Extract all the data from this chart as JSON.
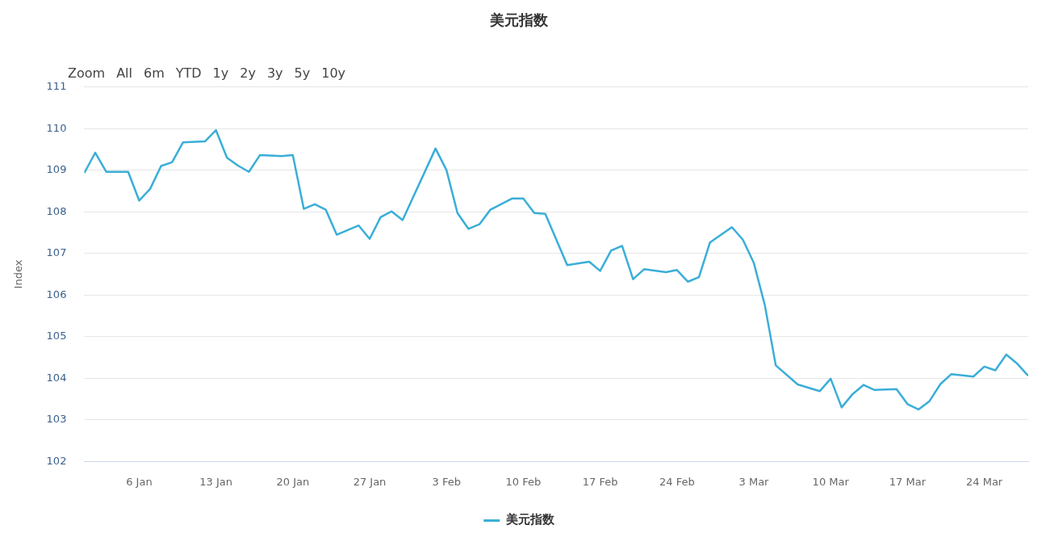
{
  "chart_data": {
    "type": "line",
    "title": "美元指数",
    "ylabel": "Index",
    "annotations": [
      "Zoom",
      "All",
      "6m",
      "YTD",
      "1y",
      "2y",
      "3y",
      "5y",
      "10y"
    ],
    "x": [
      "--01-01",
      "--01-02",
      "--01-03",
      "--01-05",
      "--01-06",
      "--01-07",
      "--01-08",
      "--01-09",
      "--01-10",
      "--01-12",
      "--01-13",
      "--01-14",
      "--01-15",
      "--01-16",
      "--01-17",
      "--01-19",
      "--01-20",
      "--01-21",
      "--01-22",
      "--01-23",
      "--01-24",
      "--01-26",
      "--01-27",
      "--01-28",
      "--01-29",
      "--01-30",
      "--02-02",
      "--02-03",
      "--02-04",
      "--02-05",
      "--02-06",
      "--02-07",
      "--02-09",
      "--02-10",
      "--02-11",
      "--02-12",
      "--02-14",
      "--02-16",
      "--02-17",
      "--02-18",
      "--02-19",
      "--02-20",
      "--02-21",
      "--02-23",
      "--02-24",
      "--02-25",
      "--02-26",
      "--02-27",
      "--03-01",
      "--03-02",
      "--03-03",
      "--03-04",
      "--03-05",
      "--03-07",
      "--03-09",
      "--03-10",
      "--03-11",
      "--03-12",
      "--03-13",
      "--03-14",
      "--03-16",
      "--03-17",
      "--03-18",
      "--03-19",
      "--03-20",
      "--03-21",
      "--03-23",
      "--03-24",
      "--03-25",
      "--03-26",
      "--03-27",
      "--03-28"
    ],
    "series": [
      {
        "name": "美元指数",
        "color": "#3aaed8",
        "values": [
          108.93,
          109.42,
          108.96,
          108.96,
          108.27,
          108.55,
          109.1,
          109.19,
          109.67,
          109.69,
          109.96,
          109.3,
          109.11,
          108.96,
          109.36,
          109.34,
          109.36,
          108.07,
          108.18,
          108.05,
          107.45,
          107.67,
          107.35,
          107.87,
          108.01,
          107.8,
          109.52,
          109.0,
          107.97,
          107.59,
          107.7,
          108.05,
          108.32,
          108.32,
          107.97,
          107.95,
          106.72,
          106.8,
          106.58,
          107.07,
          107.18,
          106.38,
          106.62,
          106.55,
          106.6,
          106.32,
          106.43,
          107.26,
          107.63,
          107.33,
          106.77,
          105.76,
          104.31,
          103.85,
          103.69,
          103.99,
          103.3,
          103.62,
          103.84,
          103.72,
          103.74,
          103.38,
          103.25,
          103.45,
          103.86,
          104.1,
          104.04,
          104.28,
          104.19,
          104.57,
          104.35,
          104.06
        ]
      }
    ],
    "xlim": [
      "--01-01",
      "--03-28"
    ],
    "xticks": [
      {
        "value": "--01-06",
        "label": "6 Jan"
      },
      {
        "value": "--01-13",
        "label": "13 Jan"
      },
      {
        "value": "--01-20",
        "label": "20 Jan"
      },
      {
        "value": "--01-27",
        "label": "27 Jan"
      },
      {
        "value": "--02-03",
        "label": "3 Feb"
      },
      {
        "value": "--02-10",
        "label": "10 Feb"
      },
      {
        "value": "--02-17",
        "label": "17 Feb"
      },
      {
        "value": "--02-24",
        "label": "24 Feb"
      },
      {
        "value": "--03-03",
        "label": "3 Mar"
      },
      {
        "value": "--03-10",
        "label": "10 Mar"
      },
      {
        "value": "--03-17",
        "label": "17 Mar"
      },
      {
        "value": "--03-24",
        "label": "24 Mar"
      }
    ],
    "ylim": [
      102,
      111
    ],
    "yticks": [
      102,
      103,
      104,
      105,
      106,
      107,
      108,
      109,
      110,
      111
    ],
    "grid": "y",
    "legend": "bottom",
    "marker": "none",
    "line_style": "solid"
  }
}
